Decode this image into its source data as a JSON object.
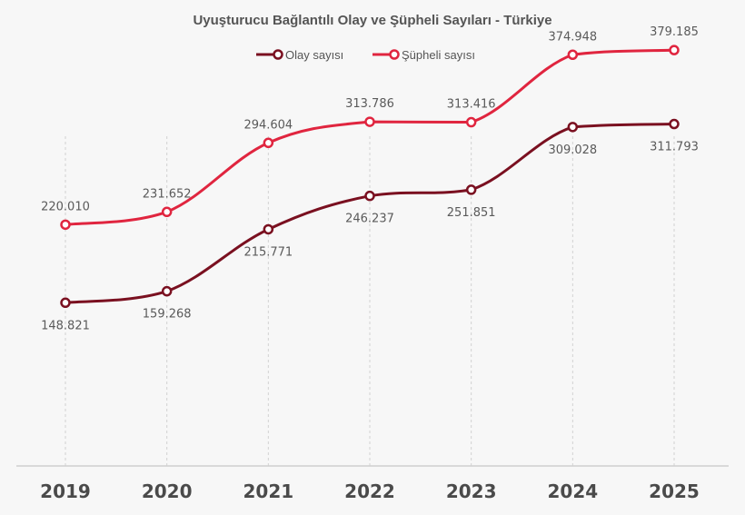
{
  "chart_data": {
    "type": "line",
    "title": "Uyuşturucu Bağlantılı Olay ve Şüpheli Sayıları - Türkiye",
    "xlabel": "",
    "ylabel": "",
    "categories": [
      "2019",
      "2020",
      "2021",
      "2022",
      "2023",
      "2024",
      "2025"
    ],
    "ylim": [
      0,
      400000
    ],
    "grid": "vertical-dashed",
    "legend_position": "top-center",
    "series": [
      {
        "name": "Olay sayısı",
        "color": "#7a1020",
        "values": [
          148821,
          159268,
          215771,
          246237,
          251851,
          309028,
          311793
        ],
        "labels": [
          "148.821",
          "159.268",
          "215.771",
          "246.237",
          "251.851",
          "309.028",
          "311.793"
        ],
        "label_side": [
          "below",
          "below",
          "below",
          "below",
          "below",
          "below",
          "below"
        ]
      },
      {
        "name": "Şüpheli sayısı",
        "color": "#e0253f",
        "values": [
          220010,
          231652,
          294604,
          313786,
          313416,
          374948,
          379185
        ],
        "labels": [
          "220.010",
          "231.652",
          "294.604",
          "313.786",
          "313.416",
          "374.948",
          "379.185"
        ],
        "label_side": [
          "above",
          "above",
          "above",
          "above",
          "above",
          "above",
          "above"
        ]
      }
    ]
  }
}
